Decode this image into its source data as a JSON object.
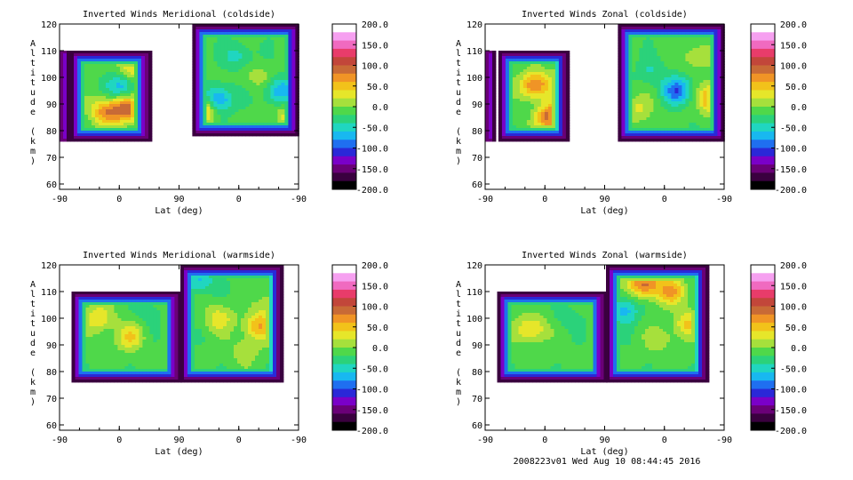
{
  "footer": "2008223v01 Wed Aug 10 08:44:45 2016",
  "palette": [
    "#000000",
    "#3a003f",
    "#6a0077",
    "#7a00c8",
    "#2a28d8",
    "#1f6ff0",
    "#18b8f0",
    "#20d6c0",
    "#2bd27a",
    "#4fd84a",
    "#a6e03c",
    "#e6e62a",
    "#f2c21a",
    "#f09426",
    "#c86a36",
    "#c2463a",
    "#e83c6a",
    "#f06ac0",
    "#f6a0f0",
    "#ffffff"
  ],
  "chart_data": [
    {
      "type": "heatmap",
      "title": "Inverted Winds Meridional (coldside)",
      "xlabel": "Lat (deg)",
      "ylabel": "Altitude (km)",
      "x_ticks": [
        "-90",
        "0",
        "90",
        "0",
        "-90"
      ],
      "y_ticks": [
        "60",
        "70",
        "80",
        "90",
        "100",
        "110",
        "120"
      ],
      "ylim": [
        58,
        120
      ],
      "colorbar": {
        "ticks": [
          "200.0",
          "150.0",
          "100.0",
          "50.0",
          "0.0",
          "-50.0",
          "-100.0",
          "-150.0",
          "-200.0"
        ],
        "range": [
          -200,
          200
        ]
      },
      "regions": [
        {
          "x": [
            -90,
            -78
          ],
          "y": [
            76,
            110
          ],
          "ramp": "steep"
        },
        {
          "x": [
            -74,
            45
          ],
          "y": [
            76,
            110
          ],
          "ramp": "medium"
        },
        {
          "x": [
            110,
            270
          ],
          "y": [
            78,
            120
          ],
          "ramp": "medium"
        }
      ],
      "features": [
        {
          "x": -20,
          "y": 87,
          "v": 95
        },
        {
          "x": 12,
          "y": 88,
          "v": 110
        },
        {
          "x": 20,
          "y": 103,
          "v": 70
        },
        {
          "x": 5,
          "y": 97,
          "v": -70
        },
        {
          "x": 150,
          "y": 92,
          "v": -80
        },
        {
          "x": 210,
          "y": 100,
          "v": 30
        },
        {
          "x": 240,
          "y": 95,
          "v": -70
        },
        {
          "x": 180,
          "y": 108,
          "v": -40
        },
        {
          "x": 260,
          "y": 85,
          "v": 60
        },
        {
          "x": 115,
          "y": 87,
          "v": 170
        }
      ]
    },
    {
      "type": "heatmap",
      "title": "Inverted Winds Zonal (coldside)",
      "xlabel": "Lat (deg)",
      "ylabel": "Altitude (km)",
      "x_ticks": [
        "-90",
        "0",
        "90",
        "0",
        "-90"
      ],
      "y_ticks": [
        "60",
        "70",
        "80",
        "90",
        "100",
        "110",
        "120"
      ],
      "ylim": [
        58,
        120
      ],
      "colorbar": {
        "ticks": [
          "200.0",
          "150.0",
          "100.0",
          "50.0",
          "0.0",
          "-50.0",
          "-100.0",
          "-150.0",
          "-200.0"
        ],
        "range": [
          -200,
          200
        ]
      },
      "regions": [
        {
          "x": [
            -90,
            -78
          ],
          "y": [
            76,
            110
          ],
          "ramp": "steep"
        },
        {
          "x": [
            -70,
            35
          ],
          "y": [
            76,
            110
          ],
          "ramp": "medium"
        },
        {
          "x": [
            110,
            270
          ],
          "y": [
            76,
            120
          ],
          "ramp": "medium"
        }
      ],
      "features": [
        {
          "x": -15,
          "y": 97,
          "v": 110
        },
        {
          "x": 10,
          "y": 85,
          "v": 130
        },
        {
          "x": 25,
          "y": 100,
          "v": 20
        },
        {
          "x": 160,
          "y": 102,
          "v": -30
        },
        {
          "x": 200,
          "y": 95,
          "v": -90
        },
        {
          "x": 230,
          "y": 108,
          "v": 40
        },
        {
          "x": 258,
          "y": 92,
          "v": 150
        },
        {
          "x": 140,
          "y": 88,
          "v": 40
        }
      ]
    },
    {
      "type": "heatmap",
      "title": "Inverted Winds Meridional (warmside)",
      "xlabel": "Lat (deg)",
      "ylabel": "Altitude (km)",
      "x_ticks": [
        "-90",
        "0",
        "90",
        "0",
        "-90"
      ],
      "y_ticks": [
        "60",
        "70",
        "80",
        "90",
        "100",
        "110",
        "120"
      ],
      "ylim": [
        58,
        120
      ],
      "colorbar": {
        "ticks": [
          "200.0",
          "150.0",
          "100.0",
          "50.0",
          "0.0",
          "-50.0",
          "-100.0",
          "-150.0",
          "-200.0"
        ],
        "range": [
          -200,
          200
        ]
      },
      "regions": [
        {
          "x": [
            -72,
            90
          ],
          "y": [
            76,
            110
          ],
          "ramp": "medium"
        },
        {
          "x": [
            92,
            245
          ],
          "y": [
            76,
            120
          ],
          "ramp": "medium"
        }
      ],
      "features": [
        {
          "x": -30,
          "y": 100,
          "v": 60
        },
        {
          "x": 15,
          "y": 93,
          "v": 55
        },
        {
          "x": 40,
          "y": 103,
          "v": -20
        },
        {
          "x": 150,
          "y": 100,
          "v": 50
        },
        {
          "x": 210,
          "y": 97,
          "v": 80
        },
        {
          "x": 230,
          "y": 105,
          "v": 40
        },
        {
          "x": 120,
          "y": 114,
          "v": -60
        },
        {
          "x": 190,
          "y": 88,
          "v": 30
        }
      ]
    },
    {
      "type": "heatmap",
      "title": "Inverted Winds Zonal (warmside)",
      "xlabel": "Lat (deg)",
      "ylabel": "Altitude (km)",
      "x_ticks": [
        "-90",
        "0",
        "90",
        "0",
        "-90"
      ],
      "y_ticks": [
        "60",
        "70",
        "80",
        "90",
        "100",
        "110",
        "120"
      ],
      "ylim": [
        58,
        120
      ],
      "colorbar": {
        "ticks": [
          "200.0",
          "150.0",
          "100.0",
          "50.0",
          "0.0",
          "-50.0",
          "-100.0",
          "-150.0",
          "-200.0"
        ],
        "range": [
          -200,
          200
        ]
      },
      "regions": [
        {
          "x": [
            -72,
            90
          ],
          "y": [
            76,
            110
          ],
          "ramp": "medium"
        },
        {
          "x": [
            92,
            245
          ],
          "y": [
            76,
            120
          ],
          "ramp": "medium"
        }
      ],
      "features": [
        {
          "x": -20,
          "y": 96,
          "v": 70
        },
        {
          "x": 30,
          "y": 100,
          "v": -20
        },
        {
          "x": 150,
          "y": 113,
          "v": 120
        },
        {
          "x": 190,
          "y": 110,
          "v": 80
        },
        {
          "x": 215,
          "y": 98,
          "v": 60
        },
        {
          "x": 120,
          "y": 103,
          "v": -60
        },
        {
          "x": 175,
          "y": 92,
          "v": 30
        }
      ]
    }
  ]
}
